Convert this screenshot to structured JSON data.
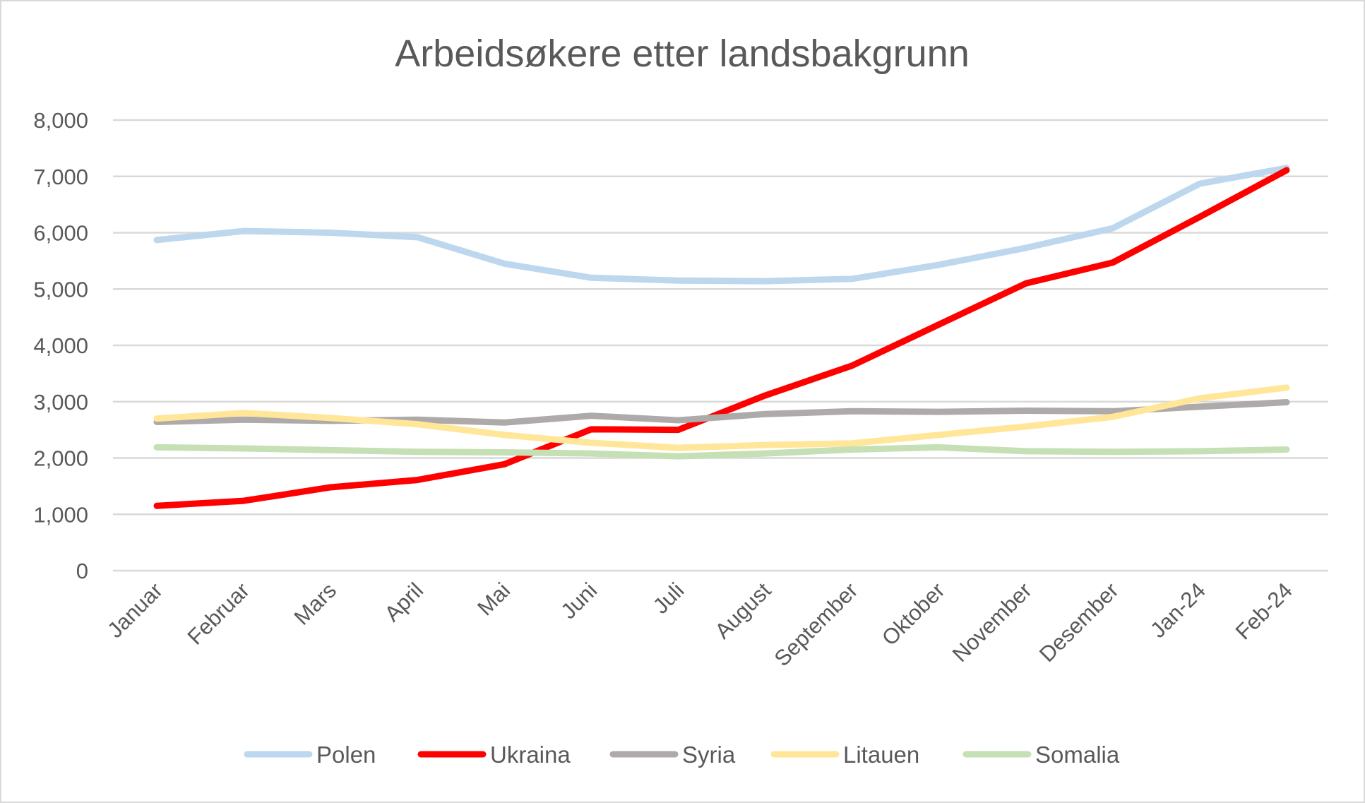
{
  "chart_data": {
    "type": "line",
    "title": "Arbeidsøkere etter landsbakgrunn",
    "xlabel": "",
    "ylabel": "",
    "ylim": [
      0,
      8000
    ],
    "yticks": [
      "0",
      "1,000",
      "2,000",
      "3,000",
      "4,000",
      "5,000",
      "6,000",
      "7,000",
      "8,000"
    ],
    "ytick_values": [
      0,
      1000,
      2000,
      3000,
      4000,
      5000,
      6000,
      7000,
      8000
    ],
    "grid": true,
    "legend_position": "bottom",
    "categories": [
      "Januar",
      "Februar",
      "Mars",
      "April",
      "Mai",
      "Juni",
      "Juli",
      "August",
      "September",
      "Oktober",
      "November",
      "Desember",
      "Jan-24",
      "Feb-24"
    ],
    "series": [
      {
        "name": "Polen",
        "color": "#bdd7ee",
        "values": [
          5870,
          6030,
          6000,
          5920,
          5450,
          5200,
          5150,
          5140,
          5180,
          5430,
          5730,
          6080,
          6870,
          7150
        ]
      },
      {
        "name": "Ukraina",
        "color": "#ff0000",
        "values": [
          1150,
          1240,
          1480,
          1610,
          1890,
          2510,
          2500,
          3110,
          3640,
          4370,
          5100,
          5470,
          6280,
          7110
        ]
      },
      {
        "name": "Syria",
        "color": "#aeaaaa",
        "values": [
          2640,
          2680,
          2660,
          2680,
          2630,
          2750,
          2670,
          2780,
          2830,
          2820,
          2840,
          2830,
          2910,
          2990
        ]
      },
      {
        "name": "Litauen",
        "color": "#ffe699",
        "values": [
          2700,
          2800,
          2710,
          2600,
          2410,
          2270,
          2180,
          2230,
          2260,
          2410,
          2560,
          2730,
          3060,
          3250
        ]
      },
      {
        "name": "Somalia",
        "color": "#c5e0b4",
        "values": [
          2190,
          2170,
          2140,
          2110,
          2100,
          2080,
          2030,
          2080,
          2150,
          2190,
          2120,
          2110,
          2120,
          2150
        ]
      }
    ]
  }
}
